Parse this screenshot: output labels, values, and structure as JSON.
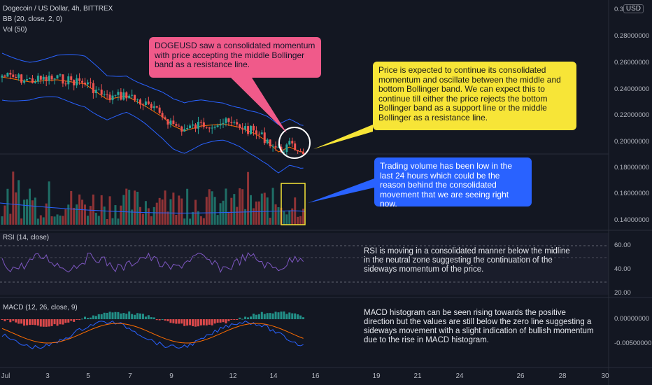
{
  "legend": {
    "symbol": "Dogecoin / US Dollar, 4h, BITTREX",
    "bb": "BB (20, close, 2, 0)",
    "vol": "Vol (50)",
    "rsi": "RSI (14, close)",
    "macd": "MACD (12, 26, close, 9)"
  },
  "price_scale": {
    "currency_badge": "USD",
    "top_label": "0.3",
    "labels": [
      "0.28000000",
      "0.26000000",
      "0.24000000",
      "0.22000000",
      "0.20000000",
      "0.18000000",
      "0.16000000",
      "0.14000000"
    ]
  },
  "rsi_scale": {
    "labels": [
      "60.00",
      "40.00",
      "20.00"
    ]
  },
  "macd_scale": {
    "labels": [
      "0.00000000",
      "-0.00500000"
    ]
  },
  "time_axis": [
    "Jul",
    "3",
    "5",
    "7",
    "9",
    "12",
    "14",
    "16",
    "19",
    "21",
    "24",
    "26",
    "28",
    "30"
  ],
  "callouts": {
    "pink": "DOGEUSD saw a consolidated momentum with price accepting the middle Bollinger band as a resistance line.",
    "yellow": "Price is expected to continue its consolidated momentum and oscillate between the middle and bottom Bollinger band. We can expect this to continue till either the price rejects the bottom Bollinger band as a support line or the middle Bollinger as a resistance line.",
    "blue": "Trading volume has been low in the last 24 hours which could be the reason behind the consolidated movement that we are seeing right now."
  },
  "notes": {
    "rsi": "RSI is moving in a consolidated manner below the midline in the neutral zone suggesting the continuation of the sideways momentum of the price.",
    "macd": "MACD histogram can be seen rising towards the positive direction but the values are still below the zero line suggesting a sideways movement with a slight indication of bullish momentum due to the rise in MACD histogram."
  },
  "colors": {
    "background": "#131722",
    "up": "#26a69a",
    "down": "#ef5350",
    "bb_bands": "#2962ff",
    "bb_basis": "#ff6d00",
    "volume_ma": "#2962ff",
    "rsi_line": "#7e57c2",
    "macd_line": "#2962ff",
    "signal_line": "#ff6d00",
    "pink_callout": "#f05a8a",
    "yellow_callout": "#f7e537",
    "blue_callout": "#2962ff"
  }
}
